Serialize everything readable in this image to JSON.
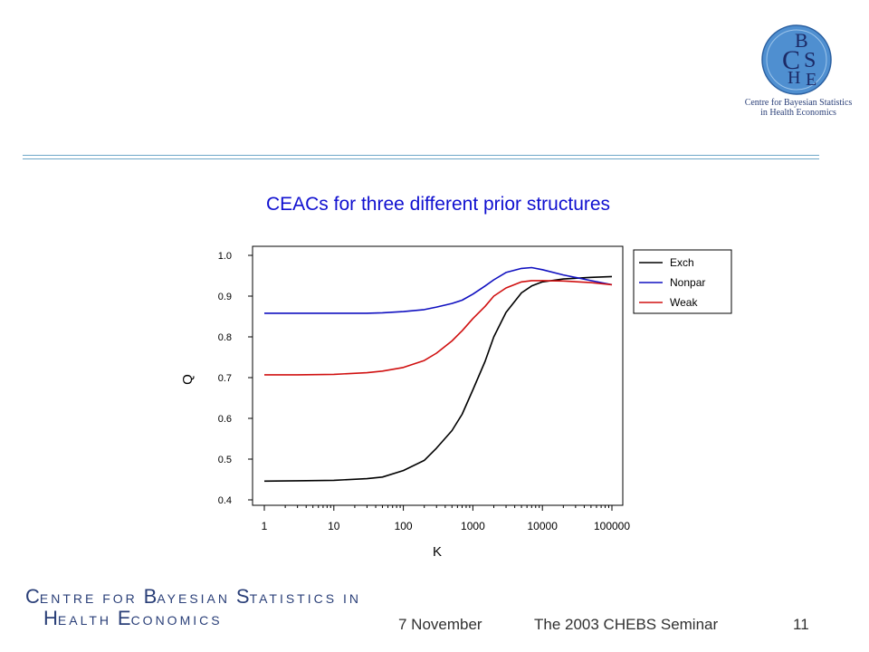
{
  "logo": {
    "letters": [
      "C",
      "B",
      "H",
      "S",
      "E"
    ],
    "caption_line1": "Centre for Bayesian Statistics",
    "caption_line2": "in Health Economics"
  },
  "chart_data": {
    "type": "line",
    "title": "CEACs for three different prior structures",
    "xlabel": "K",
    "ylabel": "Q",
    "xscale": "log",
    "xlim": [
      1,
      100000
    ],
    "ylim": [
      0.4,
      1.0
    ],
    "x_ticks": [
      "1",
      "10",
      "100",
      "1000",
      "10000",
      "100000"
    ],
    "y_ticks": [
      "0.4",
      "0.5",
      "0.6",
      "0.7",
      "0.8",
      "0.9",
      "1.0"
    ],
    "legend_position": "right",
    "grid": false,
    "series": [
      {
        "name": "Exch",
        "color": "#000000",
        "x": [
          1,
          3,
          10,
          30,
          50,
          100,
          200,
          300,
          500,
          700,
          1000,
          1500,
          2000,
          3000,
          5000,
          7000,
          10000,
          20000,
          50000,
          100000
        ],
        "y": [
          0.446,
          0.447,
          0.448,
          0.452,
          0.456,
          0.472,
          0.497,
          0.527,
          0.57,
          0.61,
          0.67,
          0.74,
          0.8,
          0.86,
          0.908,
          0.925,
          0.935,
          0.942,
          0.946,
          0.948
        ]
      },
      {
        "name": "Nonpar",
        "color": "#1010c0",
        "x": [
          1,
          3,
          10,
          30,
          50,
          100,
          200,
          300,
          500,
          700,
          1000,
          1500,
          2000,
          3000,
          5000,
          7000,
          10000,
          20000,
          50000,
          100000
        ],
        "y": [
          0.858,
          0.858,
          0.858,
          0.858,
          0.859,
          0.862,
          0.867,
          0.873,
          0.882,
          0.89,
          0.905,
          0.925,
          0.94,
          0.958,
          0.968,
          0.97,
          0.965,
          0.952,
          0.938,
          0.928
        ]
      },
      {
        "name": "Weak",
        "color": "#d01010",
        "x": [
          1,
          3,
          10,
          30,
          50,
          100,
          200,
          300,
          500,
          700,
          1000,
          1500,
          2000,
          3000,
          5000,
          7000,
          10000,
          20000,
          50000,
          100000
        ],
        "y": [
          0.707,
          0.707,
          0.708,
          0.712,
          0.716,
          0.725,
          0.742,
          0.76,
          0.79,
          0.815,
          0.845,
          0.875,
          0.9,
          0.92,
          0.935,
          0.938,
          0.938,
          0.937,
          0.933,
          0.928
        ]
      }
    ]
  },
  "footer": {
    "brand_line1": [
      {
        "cap": "C",
        "rest": "ENTRE FOR "
      },
      {
        "cap": "B",
        "rest": "AYESIAN "
      },
      {
        "cap": "S",
        "rest": "TATISTICS IN"
      }
    ],
    "brand_line2": [
      {
        "cap": "H",
        "rest": "EALTH "
      },
      {
        "cap": "E",
        "rest": "CONOMICS"
      }
    ],
    "date": "7 November",
    "seminar": "The 2003 CHEBS Seminar",
    "page_number": "11"
  }
}
